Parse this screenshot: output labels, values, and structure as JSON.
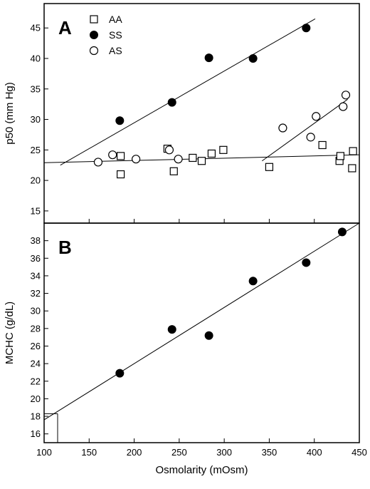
{
  "chart_data": [
    {
      "panel": "A",
      "type": "scatter",
      "ylabel": "p50 (mm Hg)",
      "xlabel": "",
      "xlim": [
        100,
        450
      ],
      "ylim": [
        13,
        49
      ],
      "yticks": [
        15,
        20,
        25,
        30,
        35,
        40,
        45
      ],
      "legend": {
        "placement": "top-left",
        "entries": [
          "AA",
          "SS",
          "AS"
        ]
      },
      "series": [
        {
          "name": "AA",
          "marker": "open-square",
          "points": [
            [
              185,
              24.0
            ],
            [
              185,
              21.0
            ],
            [
              237,
              25.2
            ],
            [
              244,
              21.5
            ],
            [
              265,
              23.7
            ],
            [
              275,
              23.2
            ],
            [
              286,
              24.4
            ],
            [
              299,
              25.0
            ],
            [
              350,
              22.2
            ],
            [
              409,
              25.8
            ],
            [
              428,
              23.2
            ],
            [
              429,
              24.0
            ],
            [
              442,
              22.0
            ],
            [
              443,
              24.8
            ]
          ]
        },
        {
          "name": "SS",
          "marker": "filled-circle",
          "points": [
            [
              184,
              29.8
            ],
            [
              242,
              32.8
            ],
            [
              283,
              40.1
            ],
            [
              332,
              40.0
            ],
            [
              391,
              45.0
            ]
          ]
        },
        {
          "name": "AS",
          "marker": "open-circle",
          "points": [
            [
              160,
              23.0
            ],
            [
              176,
              24.2
            ],
            [
              202,
              23.5
            ],
            [
              239,
              25.0
            ],
            [
              249,
              23.5
            ],
            [
              365,
              28.6
            ],
            [
              396,
              27.1
            ],
            [
              402,
              30.5
            ],
            [
              432,
              32.1
            ],
            [
              435,
              34.0
            ]
          ]
        }
      ],
      "fit_lines": [
        {
          "series": "SS",
          "from": [
            118,
            22.5
          ],
          "to": [
            401,
            46.5
          ]
        },
        {
          "series": "AA",
          "from": [
            100,
            22.9
          ],
          "to": [
            450,
            24.2
          ]
        },
        {
          "series": "AS",
          "from": [
            342,
            23.2
          ],
          "to": [
            437,
            33.3
          ]
        }
      ]
    },
    {
      "panel": "B",
      "type": "scatter",
      "ylabel": "MCHC (g/dL)",
      "xlabel": "Osmolarity (mOsm)",
      "xlim": [
        100,
        450
      ],
      "xticks": [
        100,
        150,
        200,
        250,
        300,
        350,
        400,
        450
      ],
      "ylim": [
        15,
        40
      ],
      "yticks": [
        16,
        18,
        20,
        22,
        24,
        26,
        28,
        30,
        32,
        34,
        36,
        38
      ],
      "series": [
        {
          "name": "SS",
          "marker": "filled-circle",
          "points": [
            [
              184,
              22.9
            ],
            [
              242,
              27.9
            ],
            [
              283,
              27.2
            ],
            [
              332,
              33.4
            ],
            [
              391,
              35.5
            ],
            [
              431,
              39.0
            ]
          ]
        }
      ],
      "fit_lines": [
        {
          "series": "SS",
          "from": [
            100,
            17.6
          ],
          "to": [
            450,
            40.0
          ]
        }
      ],
      "reference_line": {
        "x": 115,
        "y": 18.3
      }
    }
  ]
}
